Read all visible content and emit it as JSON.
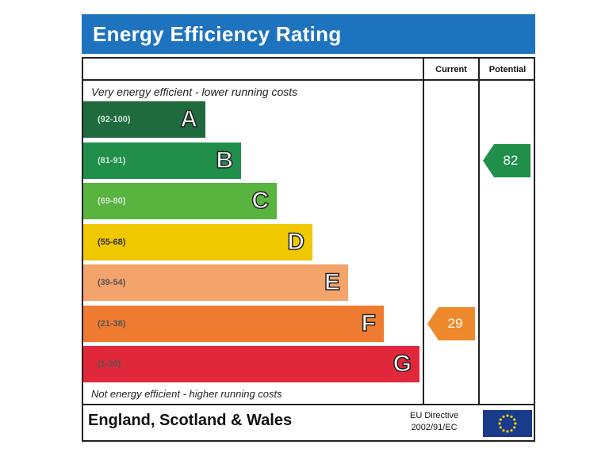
{
  "title": "Energy Efficiency Rating",
  "columns": {
    "current": "Current",
    "potential": "Potential"
  },
  "top_note": "Very energy efficient - lower running costs",
  "bottom_note": "Not energy efficient - higher running costs",
  "footer": {
    "region": "England, Scotland & Wales",
    "directive_line1": "EU Directive",
    "directive_line2": "2002/91/EC"
  },
  "chart_data": {
    "type": "bar",
    "categories": [
      "A",
      "B",
      "C",
      "D",
      "E",
      "F",
      "G"
    ],
    "ranges": [
      "(92-100)",
      "(81-91)",
      "(69-80)",
      "(55-68)",
      "(39-54)",
      "(21-38)",
      "(1-20)"
    ],
    "colors": [
      "#1f6b3d",
      "#1f8f4a",
      "#58b33f",
      "#f0c800",
      "#f4a36b",
      "#ee7b2f",
      "#e0283a"
    ],
    "current": {
      "value": 29,
      "band": "F",
      "color": "#ee8a2c"
    },
    "potential": {
      "value": 82,
      "band": "B",
      "color": "#1f8f4a"
    }
  }
}
